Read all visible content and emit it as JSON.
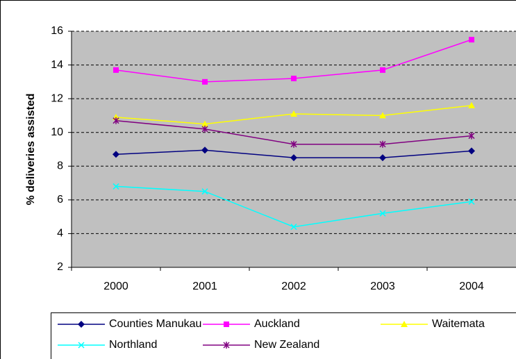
{
  "chart_data": {
    "type": "line",
    "y_label": "% deliveries assisted",
    "categories": [
      "2000",
      "2001",
      "2002",
      "2003",
      "2004"
    ],
    "series": [
      {
        "name": "Counties Manukau",
        "color": "#000080",
        "marker": "diamond",
        "values": [
          8.7,
          8.95,
          8.5,
          8.5,
          8.9
        ]
      },
      {
        "name": "Auckland",
        "color": "#ff00ff",
        "marker": "square",
        "values": [
          13.7,
          13.0,
          13.2,
          13.7,
          15.5
        ]
      },
      {
        "name": "Waitemata",
        "color": "#ffff00",
        "marker": "triangle",
        "values": [
          10.9,
          10.5,
          11.1,
          11.0,
          11.6
        ]
      },
      {
        "name": "Northland",
        "color": "#00ffff",
        "marker": "x",
        "values": [
          6.8,
          6.5,
          4.4,
          5.2,
          5.9
        ]
      },
      {
        "name": "New Zealand",
        "color": "#800080",
        "marker": "asterisk",
        "values": [
          10.7,
          10.2,
          9.3,
          9.3,
          9.8
        ]
      }
    ],
    "ylim": [
      2,
      16
    ],
    "yticks": [
      2,
      4,
      6,
      8,
      10,
      12,
      14,
      16
    ],
    "grid": true,
    "plot_background": "#c0c0c0"
  }
}
